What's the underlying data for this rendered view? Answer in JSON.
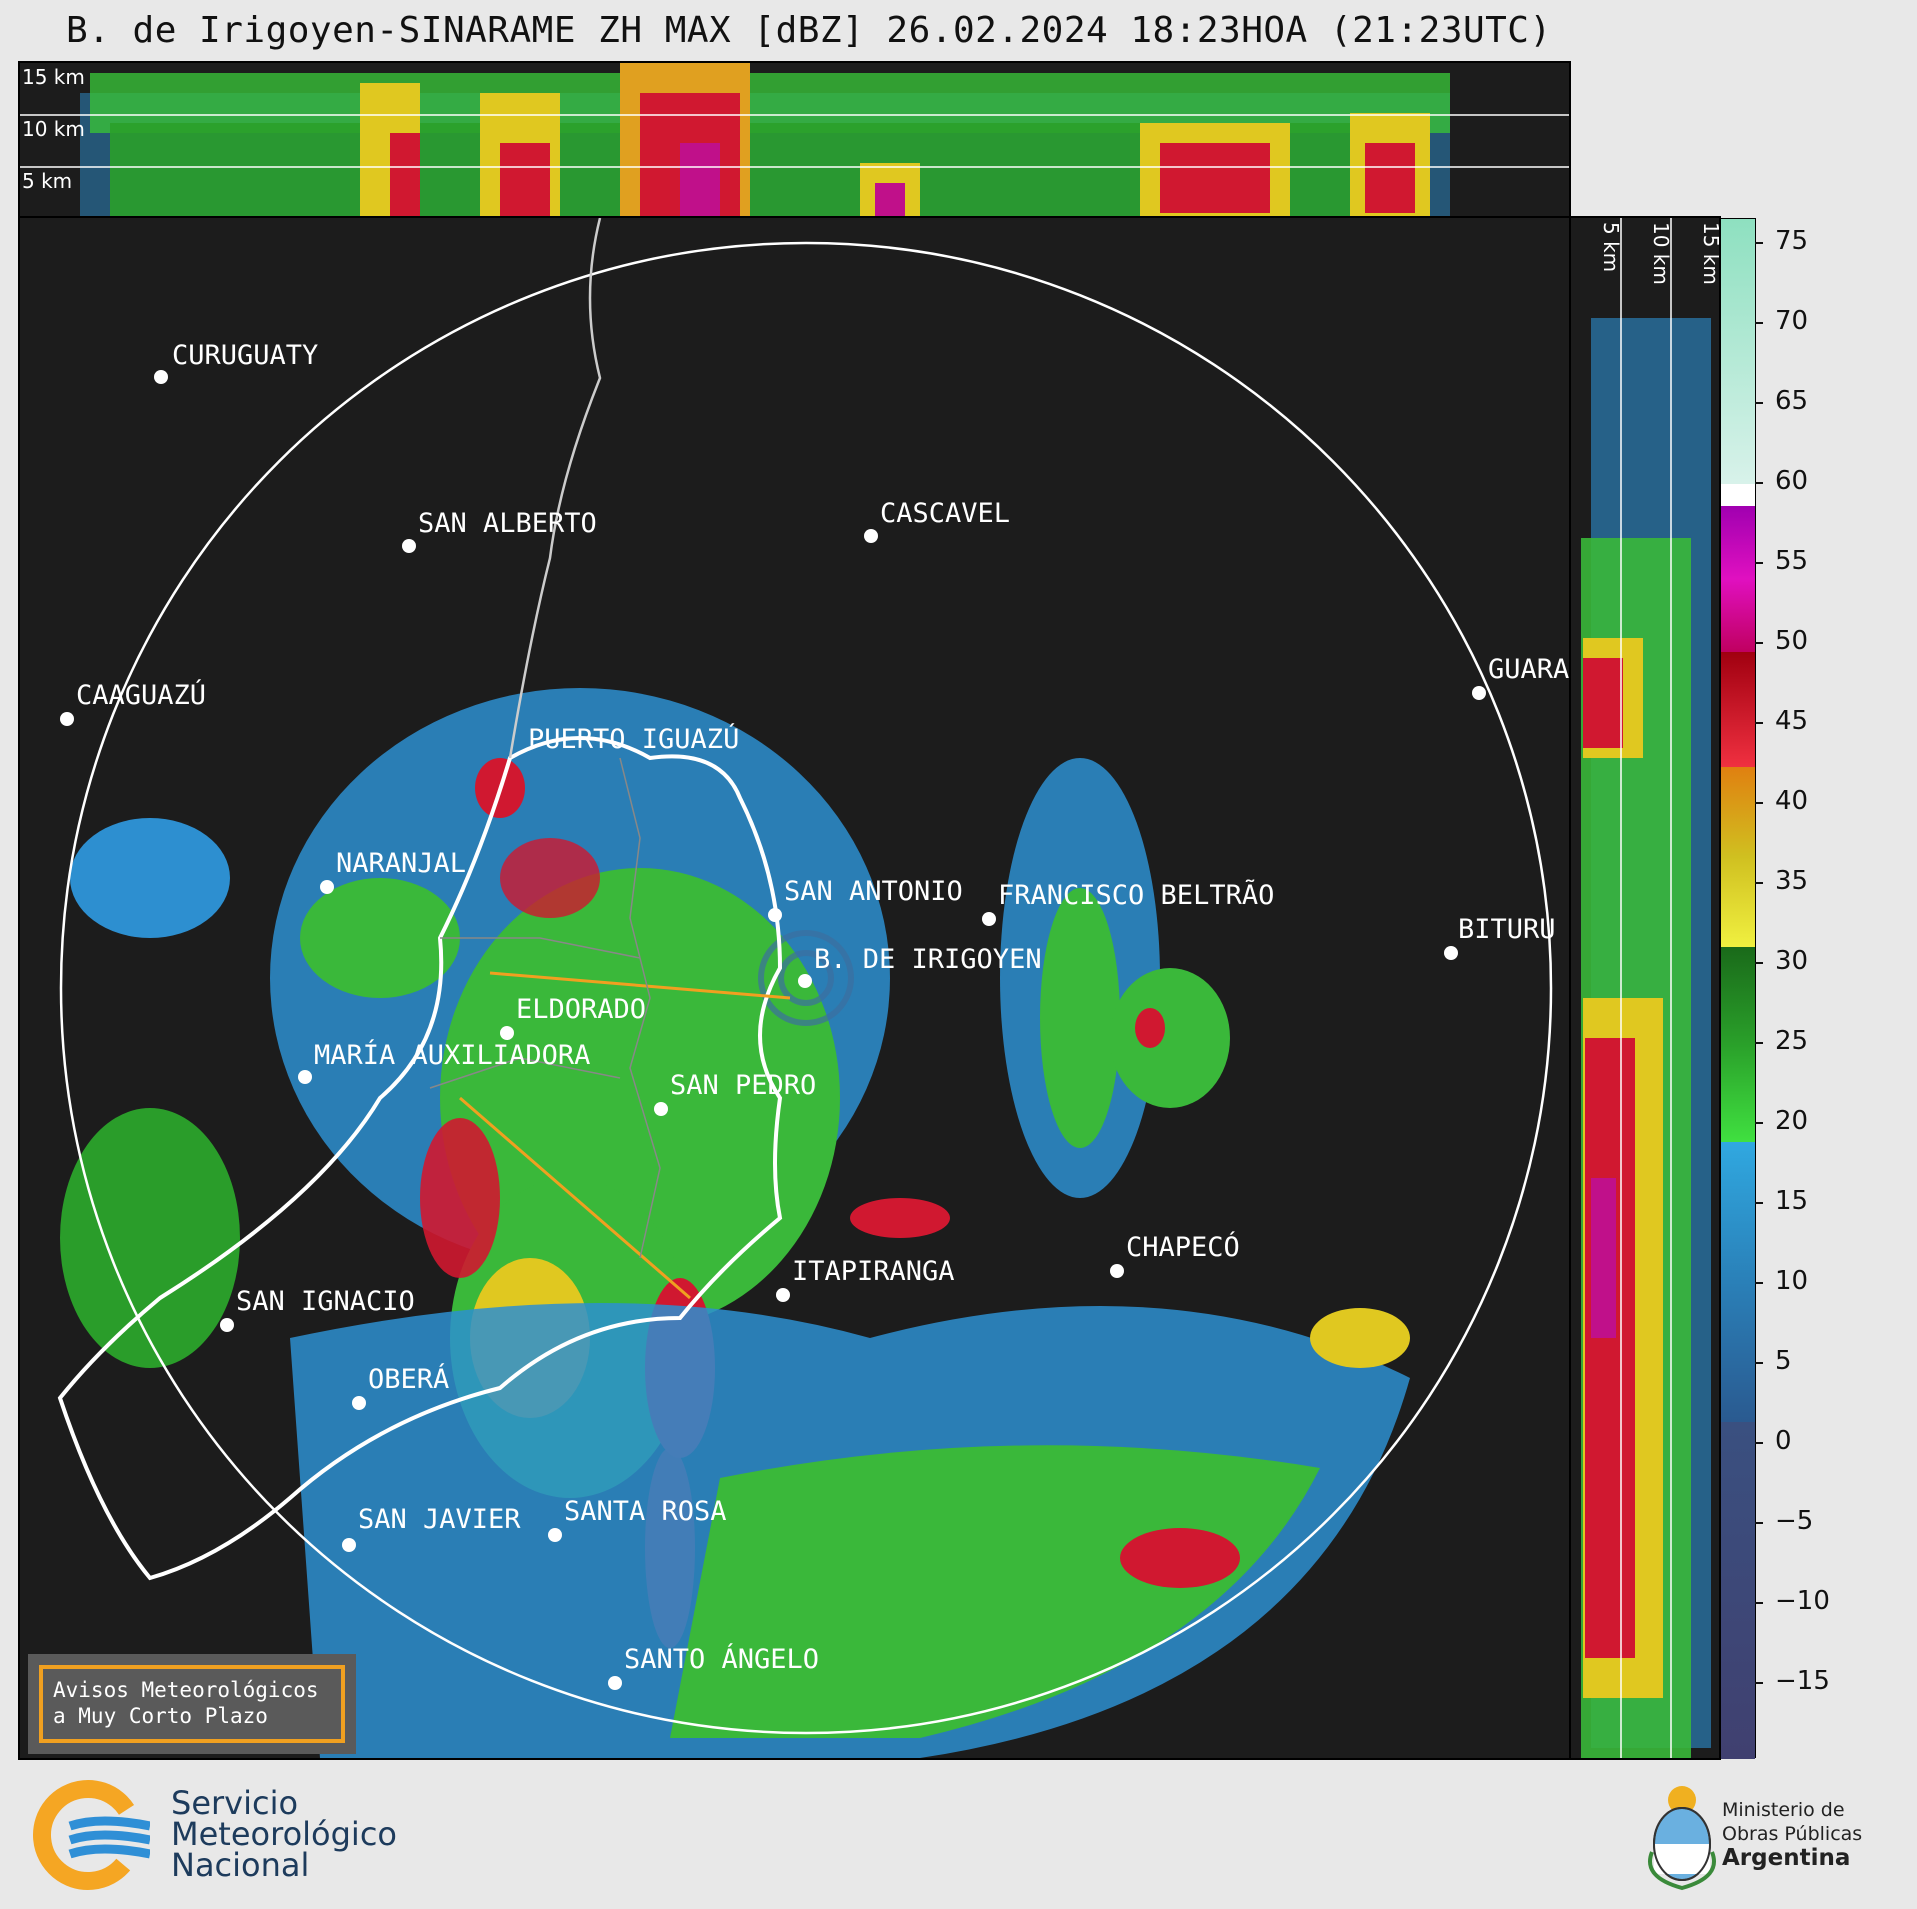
{
  "title": "B. de Irigoyen-SINARAME ZH MAX [dBZ] 26.02.2024 18:23HOA (21:23UTC)",
  "top_panel": {
    "labels": [
      "15 km",
      "10 km",
      "5 km"
    ]
  },
  "right_panel": {
    "labels": [
      "5 km",
      "10 km",
      "15 km"
    ]
  },
  "colorbar": {
    "ticks": [
      "75",
      "70",
      "65",
      "60",
      "55",
      "50",
      "45",
      "40",
      "35",
      "30",
      "25",
      "20",
      "15",
      "10",
      "5",
      "0",
      "−5",
      "−10",
      "−15"
    ]
  },
  "cities": [
    {
      "name": "CURUGUATY"
    },
    {
      "name": "SAN ALBERTO"
    },
    {
      "name": "CASCAVEL"
    },
    {
      "name": "CAAGUAZÚ"
    },
    {
      "name": "GUARA"
    },
    {
      "name": "PUERTO IGUAZÚ"
    },
    {
      "name": "NARANJAL"
    },
    {
      "name": "SAN ANTONIO"
    },
    {
      "name": "FRANCISCO BELTRÃO"
    },
    {
      "name": "BITURU"
    },
    {
      "name": "B. DE IRIGOYEN"
    },
    {
      "name": "ELDORADO"
    },
    {
      "name": "MARÍA AUXILIADORA"
    },
    {
      "name": "SAN PEDRO"
    },
    {
      "name": "CHAPECÓ"
    },
    {
      "name": "ITAPIRANGA"
    },
    {
      "name": "SAN IGNACIO"
    },
    {
      "name": "OBERÁ"
    },
    {
      "name": "SAN JAVIER"
    },
    {
      "name": "SANTA ROSA"
    },
    {
      "name": "SANTO ÁNGELO"
    }
  ],
  "warning_box": {
    "line1": "Avisos Meteorológicos",
    "line2": "a Muy Corto Plazo"
  },
  "footer": {
    "smn_line1": "Servicio",
    "smn_line2": "Meteorológico",
    "smn_line3": "Nacional",
    "ministry_line1": "Ministerio de",
    "ministry_line2": "Obras Públicas",
    "ministry_line3": "Argentina"
  }
}
